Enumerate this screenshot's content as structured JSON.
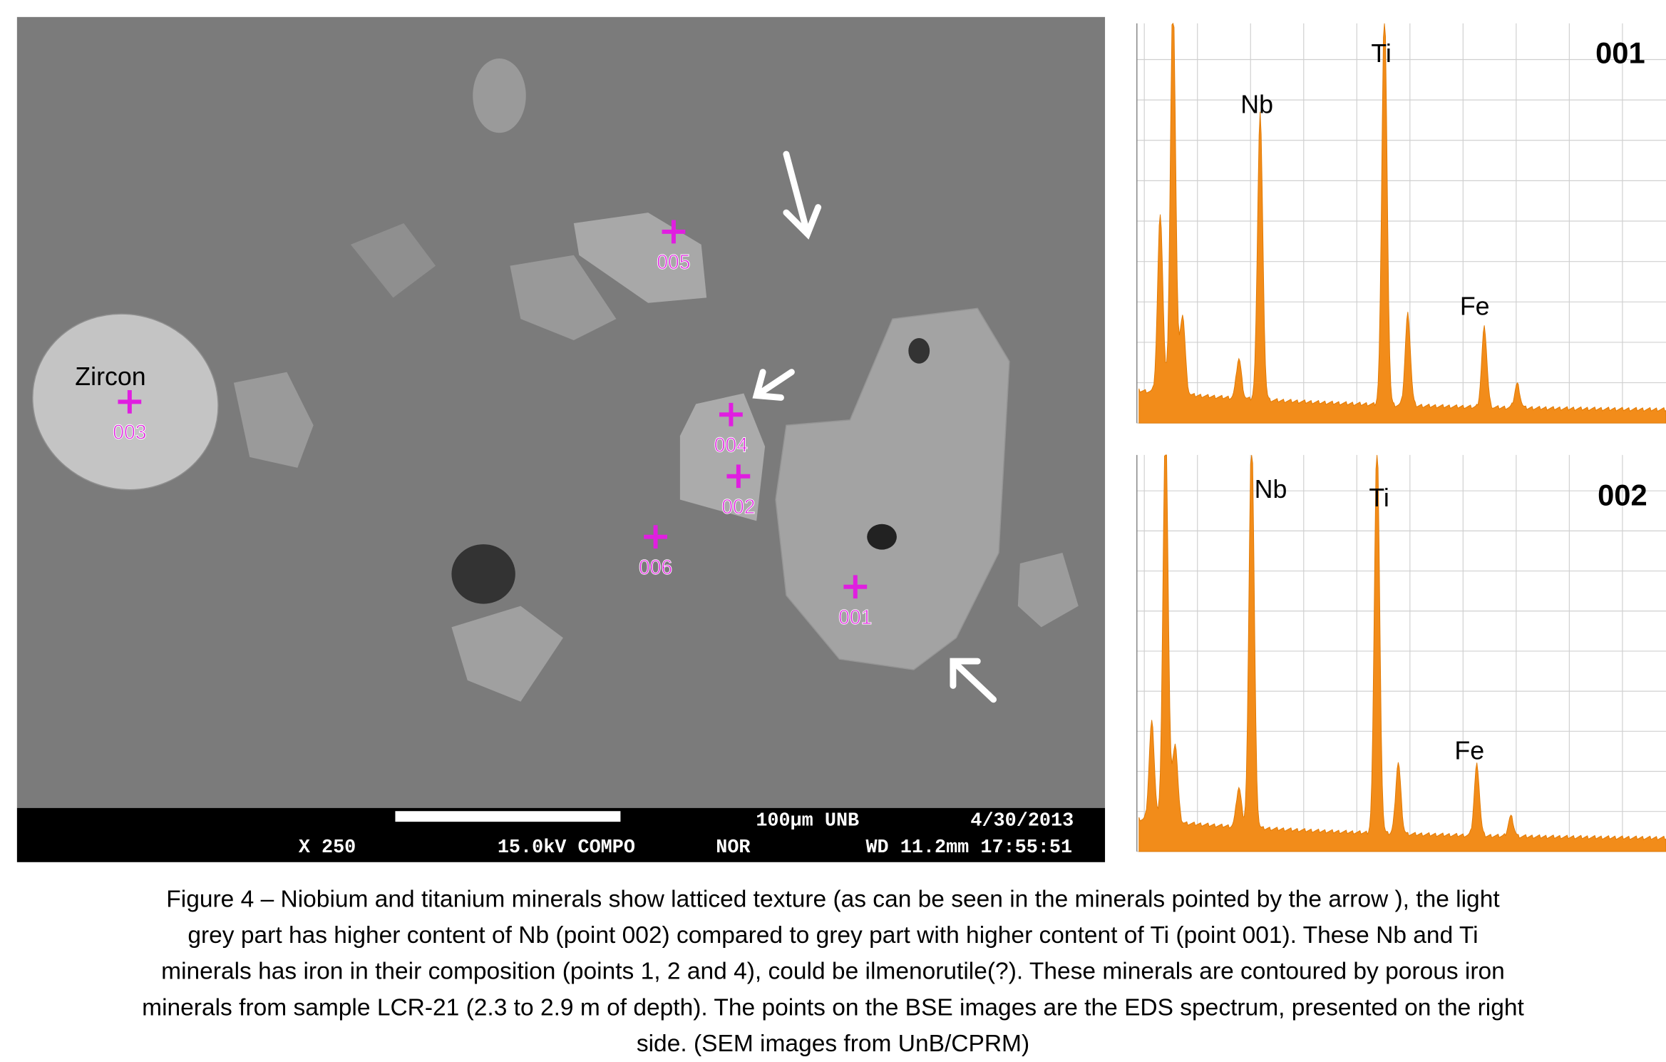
{
  "sem_image": {
    "zircon_label": "Zircon",
    "points": [
      "003",
      "005",
      "004",
      "002",
      "006",
      "001"
    ],
    "info_bar": {
      "scale": "100µm UNB",
      "date": "4/30/2013",
      "magnification": "X 250",
      "voltage_mode": "15.0kV COMPO",
      "detector": "NOR",
      "wd_time": "WD 11.2mm 17:55:51"
    }
  },
  "spectra": [
    {
      "id": "001",
      "peaks": [
        "Nb",
        "Ti",
        "Fe"
      ]
    },
    {
      "id": "002",
      "peaks": [
        "Nb",
        "Ti",
        "Fe"
      ]
    }
  ],
  "caption": [
    "Figure 4 –  Niobium and titanium minerals show latticed texture (as can be seen in the minerals pointed by the arrow ), the light",
    "grey part has higher content of Nb (point 002) compared to grey part with higher content of Ti (point 001). These Nb and Ti",
    "minerals has iron in their composition (points 1, 2 and 4), could be ilmenorutile(?).   These minerals are contoured by porous iron",
    "minerals from sample LCR-21 (2.3 to 2.9 m of depth). The points on the BSE images are  the EDS spectrum, presented on the right",
    "side. (SEM images from UnB/CPRM)"
  ]
}
